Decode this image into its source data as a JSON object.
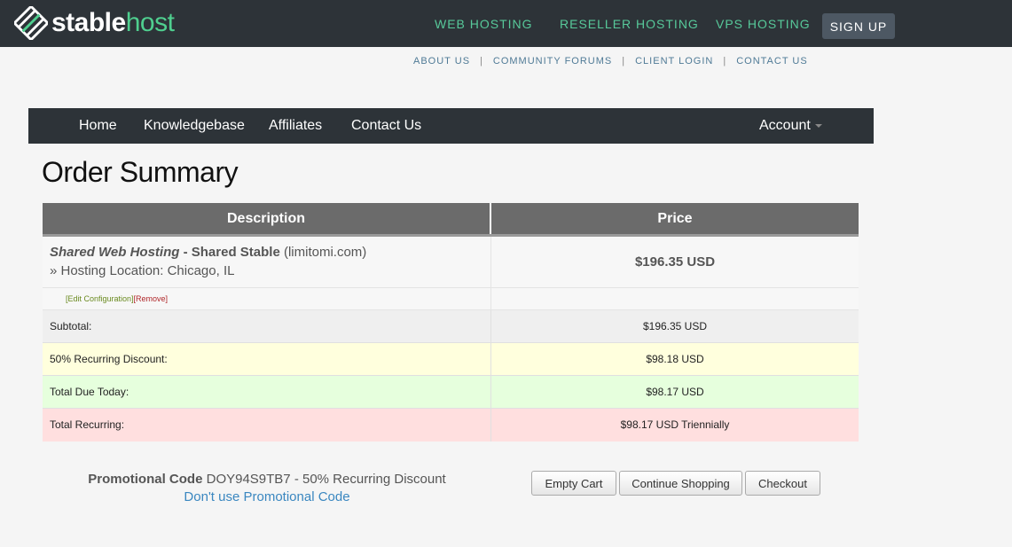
{
  "header": {
    "logo": {
      "word1": "stable",
      "word2": "host",
      "icon": "stablehost-logo-icon"
    },
    "nav": [
      "WEB HOSTING",
      "RESELLER HOSTING",
      "VPS HOSTING"
    ],
    "signup": "SIGN UP"
  },
  "sublinks": [
    "ABOUT US",
    "COMMUNITY FORUMS",
    "CLIENT LOGIN",
    "CONTACT US"
  ],
  "sublink_separator": "|",
  "mainnav": {
    "items": [
      "Home",
      "Knowledgebase",
      "Affiliates",
      "Contact Us"
    ],
    "account": "Account"
  },
  "page_title": "Order Summary",
  "table": {
    "headers": {
      "description": "Description",
      "price": "Price"
    },
    "item": {
      "group": "Shared Web Hosting",
      "dash": " - ",
      "name": "Shared Stable",
      "domain": " (limitomi.com)",
      "option": "» Hosting Location: Chicago, IL",
      "price": "$196.35 USD",
      "edit_label": "[Edit Configuration]",
      "remove_label": "[Remove]"
    },
    "summary": [
      {
        "label": "Subtotal:",
        "value": "$196.35 USD"
      },
      {
        "label": "50% Recurring Discount:",
        "value": "$98.18 USD"
      },
      {
        "label": "Total Due Today:",
        "value": "$98.17 USD"
      },
      {
        "label": "Total Recurring:",
        "value": "$98.17 USD Triennially"
      }
    ]
  },
  "promo": {
    "label": "Promotional Code",
    "code": " DOY94S9TB7 - 50% Recurring Discount",
    "remove_link": "Don't use Promotional Code"
  },
  "buttons": {
    "empty_cart": "Empty Cart",
    "continue": "Continue Shopping",
    "checkout": "Checkout"
  },
  "colors": {
    "topbar": "#2d3338",
    "accent_green": "#57c99a",
    "discount_row": "#ffffdd",
    "due_row": "#e6ffdd",
    "recurring_row": "#ffdfdf"
  }
}
